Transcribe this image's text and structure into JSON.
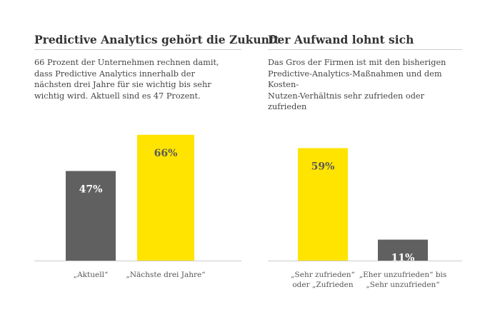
{
  "colors": {
    "dark": "#606060",
    "yellow": "#ffe400",
    "baseline": "#cccccc",
    "label_dark": "#ffffff",
    "label_yellow": "#5a5a5a",
    "category": "#555555"
  },
  "left": {
    "title": "Predictive Analytics gehört die Zukunft",
    "subtitle_lines": [
      "66 Prozent der Unternehmen rechnen damit,",
      "dass Predictive Analytics innerhalb der",
      "nächsten drei Jahre für sie wichtig bis sehr",
      "wichtig wird. Aktuell sind es 47 Prozent."
    ]
  },
  "right": {
    "title": "Der Aufwand lohnt sich",
    "subtitle_lines": [
      "Das Gros der Firmen ist mit den bisherigen",
      "Predictive-Analytics-Maßnahmen und dem Kosten-",
      "Nutzen-Verhältnis sehr zufrieden oder zufrieden"
    ]
  },
  "chart_data": [
    {
      "type": "bar",
      "categories": [
        [
          "„Aktuell“"
        ],
        [
          "„Nächste drei Jahre“"
        ]
      ],
      "values": [
        47,
        66
      ],
      "value_labels": [
        "47%",
        "66%"
      ],
      "bar_colors": [
        "dark",
        "yellow"
      ],
      "ylim": [
        0,
        100
      ]
    },
    {
      "type": "bar",
      "categories": [
        [
          "„Sehr zufrieden“",
          "oder „Zufrieden"
        ],
        [
          "„Eher unzufrieden“ bis",
          "„Sehr unzufrieden“"
        ]
      ],
      "values": [
        59,
        11
      ],
      "value_labels": [
        "59%",
        "11%"
      ],
      "bar_colors": [
        "yellow",
        "dark"
      ],
      "ylim": [
        0,
        100
      ]
    }
  ]
}
